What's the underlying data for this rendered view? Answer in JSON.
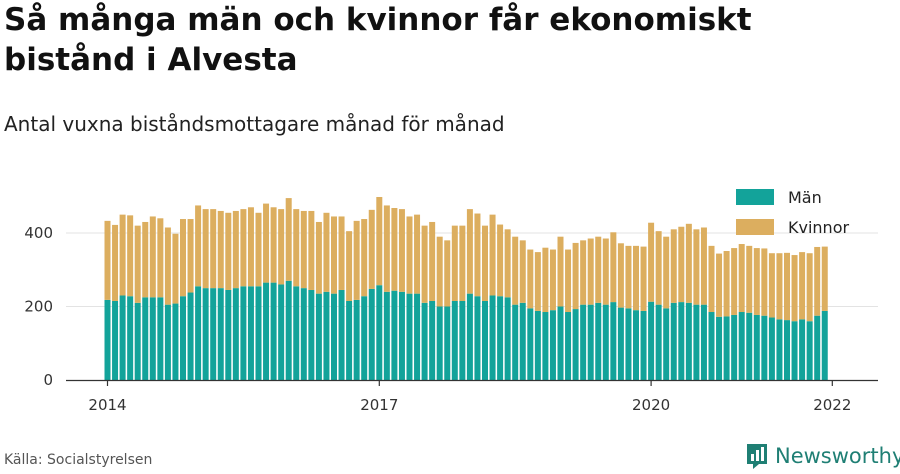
{
  "title": "Så många män och kvinnor får ekonomiskt bistånd i Alvesta",
  "subtitle": "Antal vuxna biståndsmottagare månad för månad",
  "source": "Källa: Socialstyrelsen",
  "brand": {
    "name": "Newsworthy",
    "icon": "newsworthy-logo-icon",
    "color": "#1f7f74"
  },
  "colors": {
    "man": "#13a39a",
    "kvinnor": "#dcae5f",
    "grid": "#e3e3e3",
    "axis": "#333333"
  },
  "chart_data": {
    "type": "bar",
    "stacked": true,
    "start": "2014-01",
    "frequency": "monthly",
    "ylim": [
      0,
      500
    ],
    "yticks": [
      0,
      200,
      400
    ],
    "xticks": [
      {
        "label": "2014",
        "index": 0
      },
      {
        "label": "2017",
        "index": 36
      },
      {
        "label": "2020",
        "index": 72
      },
      {
        "label": "2022",
        "index": 96
      }
    ],
    "grid": true,
    "legend_position": "top-right",
    "series": [
      {
        "name": "Män",
        "color": "#13a39a",
        "values": [
          218,
          215,
          230,
          228,
          210,
          225,
          225,
          225,
          205,
          208,
          228,
          238,
          255,
          250,
          250,
          250,
          245,
          250,
          255,
          255,
          255,
          265,
          265,
          260,
          270,
          255,
          250,
          245,
          235,
          240,
          235,
          245,
          215,
          218,
          228,
          248,
          258,
          240,
          243,
          240,
          235,
          235,
          210,
          215,
          200,
          200,
          215,
          215,
          235,
          228,
          215,
          230,
          228,
          225,
          205,
          210,
          195,
          188,
          185,
          190,
          200,
          185,
          193,
          205,
          205,
          210,
          205,
          212,
          197,
          195,
          190,
          188,
          213,
          205,
          195,
          210,
          212,
          210,
          205,
          205,
          185,
          172,
          173,
          177,
          185,
          183,
          177,
          175,
          170,
          165,
          163,
          160,
          165,
          160,
          175,
          188
        ]
      },
      {
        "name": "Kvinnor",
        "values": [
          215,
          207,
          220,
          220,
          210,
          205,
          220,
          215,
          210,
          190,
          210,
          200,
          220,
          215,
          215,
          210,
          210,
          210,
          210,
          215,
          200,
          215,
          205,
          205,
          225,
          210,
          210,
          215,
          195,
          215,
          210,
          200,
          190,
          215,
          210,
          215,
          240,
          235,
          225,
          225,
          210,
          215,
          210,
          215,
          190,
          180,
          205,
          205,
          230,
          225,
          205,
          220,
          195,
          185,
          185,
          170,
          160,
          160,
          175,
          165,
          190,
          170,
          180,
          175,
          180,
          180,
          180,
          190,
          175,
          170,
          175,
          175,
          215,
          200,
          195,
          200,
          205,
          215,
          205,
          210,
          180,
          172,
          178,
          182,
          185,
          182,
          182,
          183,
          175,
          180,
          183,
          180,
          183,
          185,
          187,
          175
        ]
      }
    ]
  }
}
